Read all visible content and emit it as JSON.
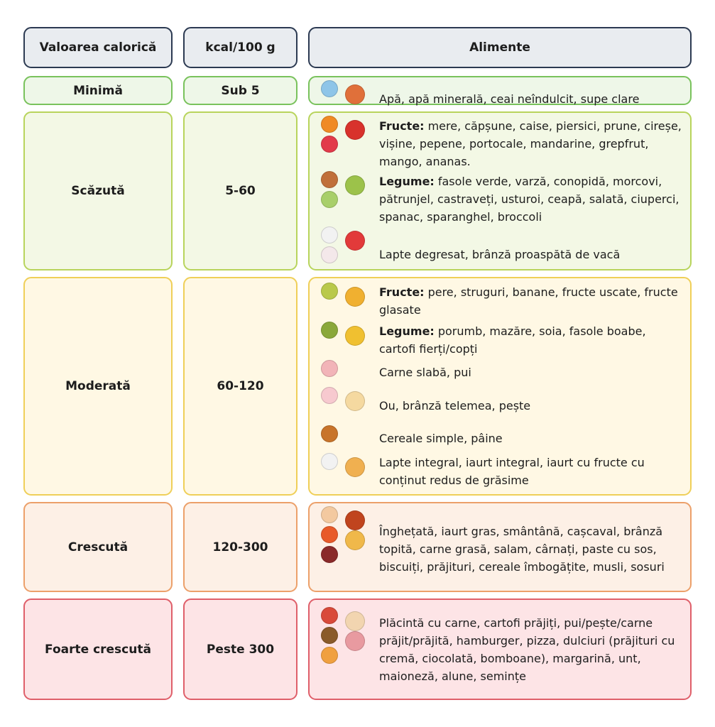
{
  "header": [
    "Valoarea calorică",
    "kcal/100 g",
    "Alimente"
  ],
  "rows": [
    {
      "level": "Minimă",
      "kcal": "Sub 5",
      "items": [
        {
          "text": "Apă, apă minerală, ceai neîndulcit, supe clare"
        }
      ]
    },
    {
      "level": "Scăzută",
      "kcal": "5-60",
      "items": [
        {
          "label": "Fructe:",
          "text": "mere, căpșune, caise, piersici, prune, cireșe, vișine, pepene, portocale, mandarine, grepfrut, mango, ananas."
        },
        {
          "label": "Legume:",
          "text": "fasole verde, varză, conopidă, morcovi, pătrunjel, castraveți, usturoi, ceapă, salată, ciuperci, spanac, sparanghel, broccoli"
        },
        {
          "text": "Lapte degresat, brânză proaspătă de vacă"
        }
      ]
    },
    {
      "level": "Moderată",
      "kcal": "60-120",
      "items": [
        {
          "label": "Fructe:",
          "text": "pere, struguri, banane, fructe uscate, fructe glasate"
        },
        {
          "label": "Legume:",
          "text": "porumb, mazăre, soia, fasole boabe, cartofi fierți/copți"
        },
        {
          "text": "Carne slabă, pui"
        },
        {
          "text": "Ou, brânză telemea, pește"
        },
        {
          "text": "Cereale simple, pâine"
        },
        {
          "text": "Lapte integral, iaurt integral, iaurt cu fructe cu conținut redus de grăsime"
        }
      ]
    },
    {
      "level": "Crescută",
      "kcal": "120-300",
      "items": [
        {
          "text": "Înghețată, iaurt gras, smântână, cașcaval, brânză topită, carne grasă, salam, cârnați, paste cu sos, biscuiți, prăjituri, cereale îmbogățite, musli, sosuri"
        }
      ]
    },
    {
      "level": "Foarte crescută",
      "kcal": "Peste 300",
      "items": [
        {
          "text": "Plăcintă cu carne, cartofi prăjiți, pui/pește/carne prăjit/prăjită, hamburger, pizza, dulciuri (prăjituri cu cremă, ciocolată, bomboane), margarină, unt, maioneză, alune, semințe"
        }
      ]
    }
  ]
}
